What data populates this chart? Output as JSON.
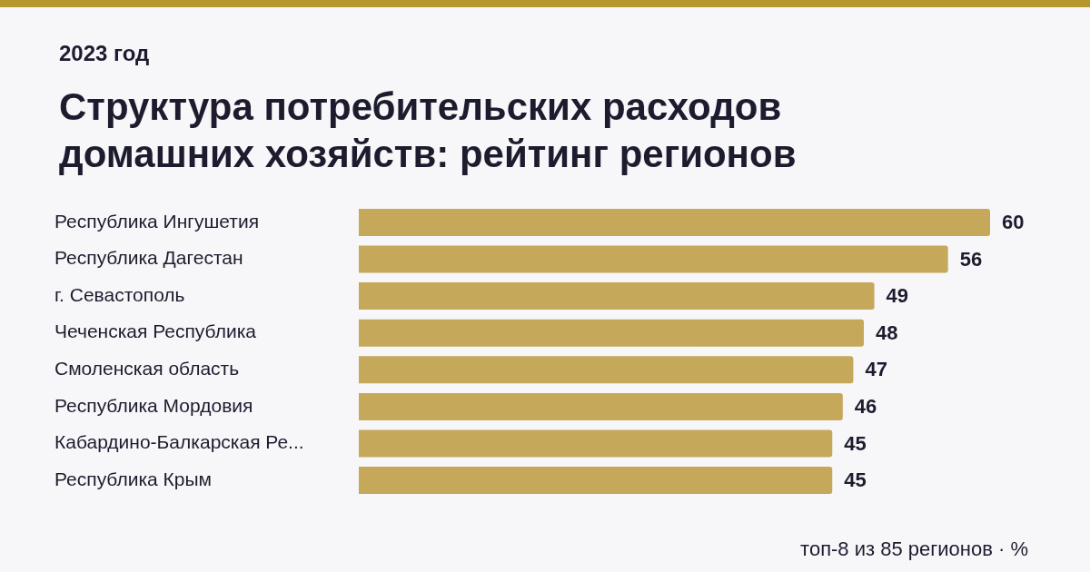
{
  "chart_data": {
    "type": "bar",
    "orientation": "horizontal",
    "title": "Структура потребительских расходов домашних хозяйств: рейтинг регионов",
    "subtitle": "2023 год",
    "categories": [
      "Республика Ингушетия",
      "Республика Дагестан",
      "г. Севастополь",
      "Чеченская Республика",
      "Смоленская область",
      "Республика Мордовия",
      "Кабардино-Балкарская Ре...",
      "Республика Крым"
    ],
    "values": [
      60,
      56,
      49,
      48,
      47,
      46,
      45,
      45
    ],
    "color": "#c5a85a",
    "data_labels": true,
    "legend": false,
    "tick_labels": "y",
    "annotations": [
      "топ-8 из 85 регионов · %"
    ]
  }
}
